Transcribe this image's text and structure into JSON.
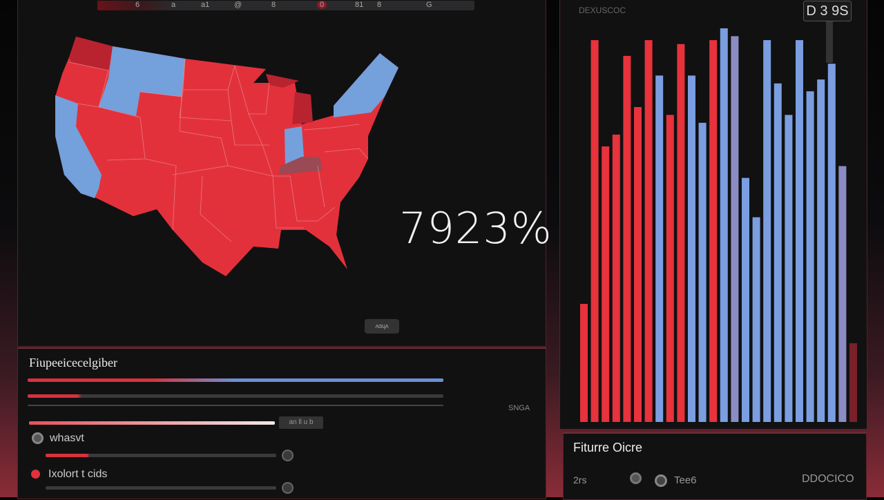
{
  "topbar": {
    "items": [
      "6",
      "a",
      "a1",
      "@",
      "8",
      "0",
      "81",
      "8",
      "G"
    ]
  },
  "map": {
    "headline": "7923%",
    "button_label": "ʌɑɥʌ",
    "colors": {
      "red": "#e3313b",
      "blue": "#74a0dc",
      "dark_red": "#b92330",
      "mauve": "#9a4a55",
      "border": "#e89aa0"
    }
  },
  "controls": {
    "title": "Fiupeeicecelgiber",
    "side_label": "SNGA",
    "slider_tag": "an ll u b",
    "vote_split_red_fraction": 0.4,
    "bar2_fraction": 0.12,
    "slider_fraction": 0.6,
    "rows": [
      {
        "label": "whasvt",
        "icon": "circle-icon",
        "fraction": 0.18
      },
      {
        "label": "Ixolort t cids",
        "icon": "red-dot-icon",
        "fraction": 0.0
      }
    ]
  },
  "chart": {
    "label": "DEXUSCOC",
    "tooltip": "D 3 9S"
  },
  "chart_data": {
    "type": "bar",
    "values": [
      30,
      97,
      70,
      73,
      93,
      80,
      97,
      88,
      78,
      96,
      88,
      76,
      97,
      100,
      98,
      62,
      52,
      97,
      86,
      78,
      97,
      84,
      87,
      91,
      65,
      20
    ],
    "colors": [
      "red",
      "red",
      "red",
      "red",
      "red",
      "red",
      "red",
      "blue",
      "red",
      "red",
      "blue",
      "blue",
      "red",
      "blue",
      "purple",
      "blue",
      "blue",
      "blue",
      "blue",
      "blue",
      "blue",
      "blue",
      "blue",
      "blue",
      "purple",
      "darkred"
    ],
    "palette": {
      "red": "#e8323c",
      "blue": "#7a9ee0",
      "purple": "#8c8cc4",
      "darkred": "#7a2028"
    },
    "ylim": [
      0,
      100
    ]
  },
  "info": {
    "title": "Fiturre Oicre",
    "left": "2rs",
    "middle": "Tee6",
    "right": "DDOCICO"
  }
}
